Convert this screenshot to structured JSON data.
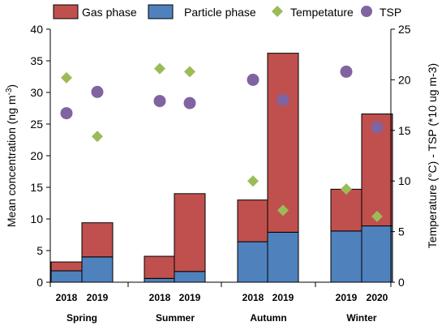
{
  "chart_data": {
    "type": "bar",
    "stacked": true,
    "groups": [
      {
        "season": "Spring",
        "years": [
          "2018",
          "2019"
        ]
      },
      {
        "season": "Summer",
        "years": [
          "2018",
          "2019"
        ]
      },
      {
        "season": "Autumn",
        "years": [
          "2018",
          "2019"
        ]
      },
      {
        "season": "Winter",
        "years": [
          "2019",
          "2020"
        ]
      }
    ],
    "series": [
      {
        "name": "Particle phase",
        "type": "bar",
        "axis": "left",
        "color": "#4f81bd",
        "values": [
          1.8,
          4.0,
          0.6,
          1.7,
          6.4,
          7.9,
          8.1,
          8.9
        ]
      },
      {
        "name": "Gas phase",
        "type": "bar",
        "axis": "left",
        "color": "#c0504d",
        "values": [
          1.4,
          5.4,
          3.5,
          12.3,
          6.6,
          28.3,
          6.6,
          17.7
        ]
      },
      {
        "name": "Tempetature",
        "type": "scatter",
        "axis": "right",
        "marker": "diamond",
        "color": "#9bbb59",
        "values": [
          20.2,
          14.4,
          21.1,
          20.8,
          10.0,
          7.1,
          9.2,
          6.5
        ]
      },
      {
        "name": "TSP",
        "type": "scatter",
        "axis": "right",
        "marker": "circle",
        "color": "#8064a2",
        "values": [
          16.7,
          18.8,
          17.9,
          17.7,
          20.0,
          18.0,
          20.8,
          15.3
        ]
      }
    ],
    "yleft": {
      "label_main": "Mean concentration (ng m",
      "label_sup": "-3",
      "label_end": ")",
      "range": [
        0,
        40
      ],
      "ticks": [
        0,
        5,
        10,
        15,
        20,
        25,
        30,
        35,
        40
      ]
    },
    "yright": {
      "label": "Temperature (°C) - TSP (*10 ug m-3)",
      "range": [
        0,
        25
      ],
      "ticks": [
        0,
        5,
        10,
        15,
        20,
        25
      ]
    },
    "legend": {
      "placement": "top",
      "order": [
        "Gas phase",
        "Particle phase",
        "Tempetature",
        "TSP"
      ]
    },
    "grid": false
  }
}
